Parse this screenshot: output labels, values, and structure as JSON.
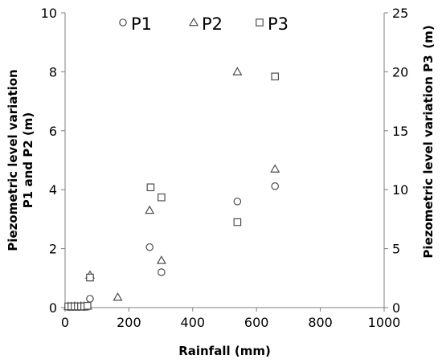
{
  "chart_data": {
    "type": "scatter",
    "xlabel": "Rainfall (mm)",
    "ylabel_left": [
      "Piezometric level variation",
      "P1 and P2 (m)"
    ],
    "ylabel_right": [
      "Piezometric level variation P3",
      "(m)"
    ],
    "xlim": [
      0,
      1000
    ],
    "x_ticks": [
      0,
      200,
      400,
      600,
      800,
      1000
    ],
    "ylim_left": [
      0,
      10
    ],
    "y_ticks_left": [
      0,
      2,
      4,
      6,
      8,
      10
    ],
    "ylim_right": [
      0,
      25
    ],
    "y_ticks_right": [
      0,
      5,
      10,
      15,
      20,
      25
    ],
    "grid": false,
    "legend_position": "top",
    "series": [
      {
        "name": "P1",
        "marker": "circle",
        "axis": "left",
        "points": [
          [
            10,
            0.02
          ],
          [
            15,
            0.02
          ],
          [
            20,
            0.03
          ],
          [
            25,
            0.02
          ],
          [
            30,
            0.03
          ],
          [
            35,
            0.02
          ],
          [
            40,
            0.03
          ],
          [
            45,
            0.02
          ],
          [
            50,
            0.03
          ],
          [
            55,
            0.03
          ],
          [
            60,
            0.02
          ],
          [
            65,
            0.03
          ],
          [
            70,
            0.03
          ],
          [
            78,
            0.3
          ],
          [
            265,
            2.05
          ],
          [
            302,
            1.2
          ],
          [
            540,
            3.6
          ],
          [
            658,
            4.12
          ]
        ]
      },
      {
        "name": "P2",
        "marker": "triangle",
        "axis": "left",
        "points": [
          [
            10,
            0.04
          ],
          [
            20,
            0.04
          ],
          [
            30,
            0.05
          ],
          [
            40,
            0.04
          ],
          [
            50,
            0.05
          ],
          [
            60,
            0.05
          ],
          [
            70,
            0.05
          ],
          [
            78,
            1.1
          ],
          [
            165,
            0.35
          ],
          [
            265,
            3.3
          ],
          [
            302,
            1.6
          ],
          [
            540,
            8.0
          ],
          [
            658,
            4.7
          ]
        ]
      },
      {
        "name": "P3",
        "marker": "square",
        "axis": "right",
        "points": [
          [
            10,
            0.1
          ],
          [
            20,
            0.1
          ],
          [
            30,
            0.1
          ],
          [
            40,
            0.1
          ],
          [
            50,
            0.1
          ],
          [
            60,
            0.1
          ],
          [
            70,
            0.15
          ],
          [
            78,
            2.55
          ],
          [
            268,
            10.2
          ],
          [
            302,
            9.35
          ],
          [
            540,
            7.25
          ],
          [
            658,
            19.6
          ]
        ]
      }
    ]
  }
}
